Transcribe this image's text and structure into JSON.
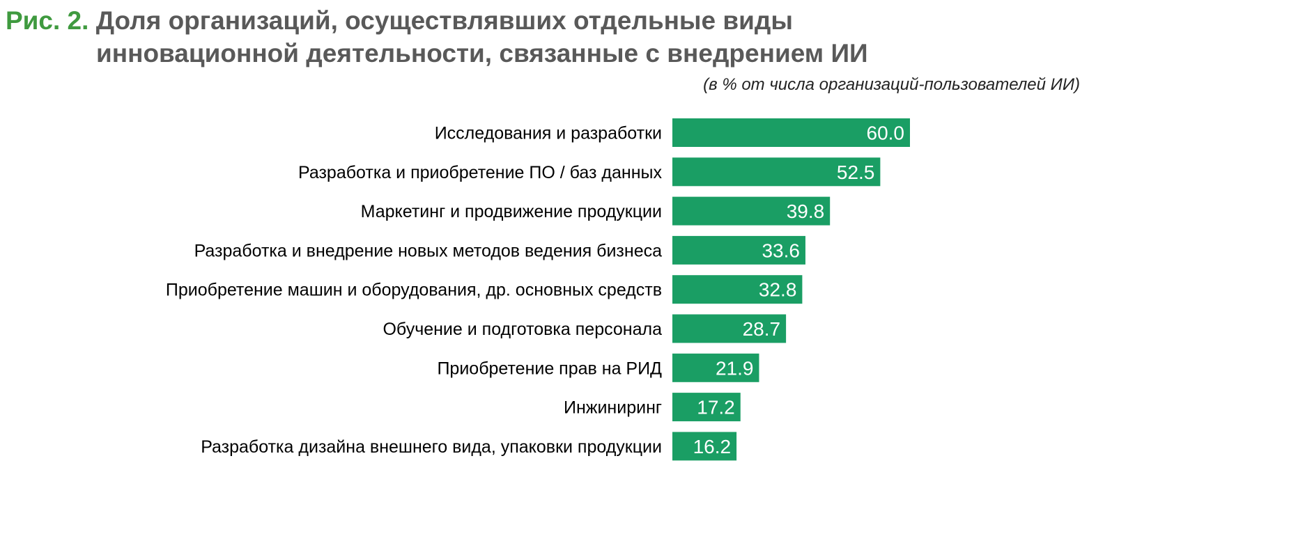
{
  "chart_data": {
    "type": "bar",
    "orientation": "horizontal",
    "title_prefix": "Рис. 2.",
    "title_line1": "Доля организаций, осуществлявших отдельные виды",
    "title_line2": "инновационной деятельности, связанные с внедрением ИИ",
    "subtitle": "(в % от числа организаций-пользователей ИИ)",
    "categories": [
      "Исследования и разработки",
      "Разработка и приобретение ПО / баз данных",
      "Маркетинг и продвижение продукции",
      "Разработка и внедрение новых методов ведения бизнеса",
      "Приобретение машин и оборудования, др. основных средств",
      "Обучение и подготовка персонала",
      "Приобретение прав на РИД",
      "Инжиниринг",
      "Разработка дизайна внешнего вида, упаковки продукции"
    ],
    "values": [
      60.0,
      52.5,
      39.8,
      33.6,
      32.8,
      28.7,
      21.9,
      17.2,
      16.2
    ],
    "bar_color": "#1a9e64",
    "title_accent_color": "#3f9a3f",
    "title_color": "#595959",
    "grid": false,
    "legend": "none"
  }
}
